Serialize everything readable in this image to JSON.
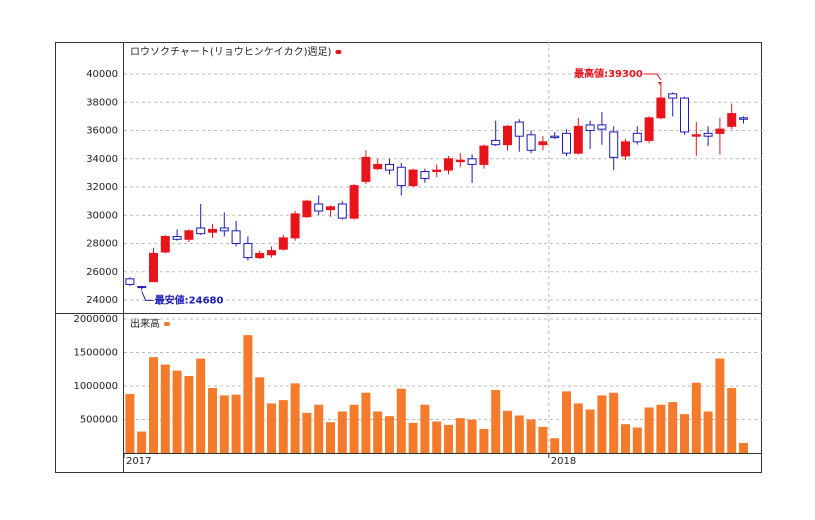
{
  "chart_data": [
    {
      "type": "candlestick",
      "title": "ロウソクチャート(リョウヒンケイカク)週足)",
      "up_color": "#e8141b",
      "down_color": "#1c1cb4",
      "open": [
        25500,
        24950,
        25300,
        27400,
        28500,
        28300,
        29100,
        28800,
        29100,
        28900,
        28000,
        27000,
        27200,
        27600,
        28400,
        29900,
        30800,
        30400,
        30800,
        29800,
        32400,
        33300,
        33600,
        33400,
        32100,
        33100,
        33100,
        33200,
        33800,
        34000,
        33600,
        35300,
        35000,
        36600,
        35700,
        35000,
        35600,
        35800,
        34400,
        36400,
        36400,
        35900,
        34200,
        35800,
        35300,
        36900,
        38600,
        38300,
        35600,
        35800,
        35800,
        36300,
        36900
      ],
      "high": [
        25600,
        25000,
        27700,
        28600,
        29000,
        29000,
        30800,
        29400,
        30200,
        29600,
        28500,
        27500,
        27800,
        28600,
        30300,
        31100,
        31400,
        30700,
        31000,
        32200,
        34600,
        34000,
        34000,
        33700,
        33300,
        33300,
        33600,
        34200,
        34400,
        34300,
        35000,
        36700,
        36400,
        36800,
        36000,
        35600,
        35900,
        36100,
        36900,
        36700,
        37300,
        36300,
        35400,
        36300,
        37000,
        39300,
        38700,
        38400,
        36600,
        36300,
        36900,
        37900,
        37000
      ],
      "low": [
        25000,
        24680,
        25300,
        27300,
        28200,
        28100,
        28600,
        28400,
        28500,
        27800,
        26800,
        26900,
        27000,
        27500,
        28200,
        29800,
        30000,
        29900,
        29700,
        29700,
        32200,
        33200,
        32900,
        31400,
        32000,
        32300,
        32700,
        32900,
        33400,
        32300,
        33300,
        34900,
        34600,
        34500,
        34400,
        34600,
        35400,
        34200,
        34300,
        34700,
        35000,
        33200,
        33900,
        35000,
        35100,
        36800,
        37000,
        35700,
        34200,
        34900,
        34300,
        36100,
        36500
      ],
      "close": [
        25100,
        24900,
        27300,
        28500,
        28300,
        28900,
        28700,
        29000,
        28900,
        28000,
        27000,
        27300,
        27500,
        28400,
        30100,
        31000,
        30300,
        30600,
        29800,
        32100,
        34100,
        33600,
        33200,
        32100,
        33200,
        32600,
        33200,
        34000,
        33900,
        33600,
        34900,
        35000,
        36300,
        35600,
        34600,
        35200,
        35500,
        34400,
        36300,
        36000,
        36100,
        34100,
        35200,
        35200,
        36900,
        38300,
        38300,
        35900,
        35700,
        35600,
        36100,
        37200,
        36800
      ],
      "annotations": [
        {
          "label": "最高値:39300",
          "value": 39300
        },
        {
          "label": "最安値:24680",
          "value": 24680
        }
      ],
      "ylim": [
        23080,
        42270
      ],
      "yticks": [
        24000,
        26000,
        28000,
        30000,
        32000,
        34000,
        36000,
        38000,
        40000
      ],
      "grid": true
    },
    {
      "type": "bar",
      "title": "出来高",
      "color": "#f47b2c",
      "categories": [
        "2017",
        null,
        null,
        null,
        null,
        null,
        null,
        null,
        null,
        null,
        null,
        null,
        null,
        null,
        null,
        null,
        null,
        null,
        null,
        null,
        null,
        null,
        null,
        null,
        null,
        null,
        null,
        null,
        null,
        null,
        null,
        null,
        null,
        null,
        null,
        null,
        "2018",
        null,
        null,
        null,
        null,
        null,
        null,
        null,
        null,
        null,
        null,
        null,
        null,
        null,
        null,
        null,
        null
      ],
      "values": [
        880000,
        320000,
        1430000,
        1320000,
        1230000,
        1150000,
        1410000,
        970000,
        860000,
        870000,
        1760000,
        1130000,
        740000,
        790000,
        1040000,
        600000,
        720000,
        460000,
        620000,
        720000,
        900000,
        620000,
        550000,
        960000,
        450000,
        720000,
        470000,
        420000,
        520000,
        500000,
        360000,
        940000,
        630000,
        560000,
        500000,
        390000,
        220000,
        920000,
        740000,
        650000,
        860000,
        900000,
        430000,
        380000,
        680000,
        720000,
        760000,
        580000,
        1050000,
        620000,
        1410000,
        970000,
        150000
      ],
      "ylim": [
        0,
        2090000
      ],
      "yticks": [
        500000,
        1000000,
        1500000,
        2000000
      ],
      "grid": true
    }
  ]
}
